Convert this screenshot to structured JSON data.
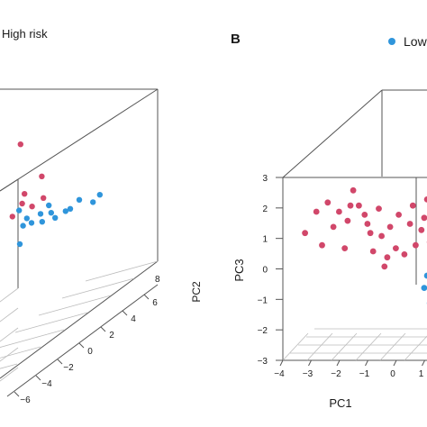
{
  "panels": [
    {
      "label": "",
      "legend": [
        "High risk"
      ],
      "axis_labels": {
        "pc2": "PC2"
      },
      "pc2_ticks": [
        "6",
        "4",
        "2",
        "0",
        "−2",
        "−4",
        "−6"
      ],
      "pc2_top_tick": "8"
    },
    {
      "label": "B",
      "legend": [
        "Low"
      ],
      "axis_labels": {
        "pc1": "PC1",
        "pc3": "PC3"
      },
      "pc3_ticks": [
        "3",
        "2",
        "1",
        "0",
        "−1",
        "−2",
        "−3"
      ],
      "pc1_ticks": [
        "−4",
        "−3",
        "−2",
        "−1",
        "0",
        "1"
      ]
    }
  ],
  "colors": {
    "high_risk": "#d1476a",
    "low_risk": "#2f95db",
    "axes": "#555555",
    "grid": "#bcbcbc"
  },
  "chart_data": [
    {
      "type": "scatter",
      "title": "",
      "axes": [
        "PC1",
        "PC2",
        "PC3"
      ],
      "ylim_pc2": [
        -6,
        8
      ],
      "series": [
        {
          "name": "High risk",
          "color": "#d1476a",
          "points": [
            [
              0.2,
              0.5,
              2.6
            ],
            [
              0.4,
              0.2,
              1.2
            ],
            [
              0.8,
              0.9,
              1.6
            ],
            [
              0.3,
              0.3,
              0.9
            ],
            [
              0.6,
              0.4,
              0.8
            ],
            [
              0.1,
              -0.2,
              0.6
            ],
            [
              0.9,
              0.7,
              1.0
            ]
          ]
        },
        {
          "name": "Low risk",
          "color": "#2f95db",
          "points": [
            [
              0.2,
              0.3,
              0.7
            ],
            [
              0.5,
              0.1,
              0.5
            ],
            [
              0.9,
              0.3,
              0.6
            ],
            [
              1.2,
              0.5,
              0.6
            ],
            [
              1.6,
              0.8,
              0.6
            ],
            [
              2.0,
              1.0,
              0.9
            ],
            [
              2.4,
              1.2,
              0.8
            ],
            [
              0.7,
              -0.1,
              0.4
            ],
            [
              1.4,
              0.2,
              0.5
            ],
            [
              1.8,
              0.6,
              0.7
            ],
            [
              0.4,
              0.0,
              0.3
            ],
            [
              1.0,
              0.1,
              0.4
            ],
            [
              0.2,
              0.4,
              -0.3
            ],
            [
              2.6,
              1.3,
              1.0
            ],
            [
              1.1,
              0.6,
              0.8
            ]
          ]
        }
      ]
    },
    {
      "type": "scatter",
      "title": "",
      "xlabel": "PC1",
      "zlabel": "PC3",
      "xlim": [
        -4,
        1
      ],
      "zlim": [
        -3,
        3
      ],
      "series": [
        {
          "name": "Low",
          "color": "#2f95db",
          "points": [
            [
              0.6,
              0,
              -0.8
            ],
            [
              0.7,
              0,
              -0.4
            ],
            [
              0.8,
              0,
              -1.3
            ]
          ]
        },
        {
          "name": "High risk",
          "color": "#d1476a",
          "points": [
            [
              -3.6,
              0,
              1.0
            ],
            [
              -3.2,
              0,
              1.7
            ],
            [
              -3.0,
              0,
              0.6
            ],
            [
              -2.8,
              0,
              2.0
            ],
            [
              -2.6,
              0,
              1.2
            ],
            [
              -2.4,
              0,
              1.7
            ],
            [
              -2.2,
              0,
              0.5
            ],
            [
              -2.1,
              0,
              1.4
            ],
            [
              -1.9,
              0,
              2.4
            ],
            [
              -1.7,
              0,
              1.9
            ],
            [
              -1.5,
              0,
              1.6
            ],
            [
              -1.3,
              0,
              1.0
            ],
            [
              -1.2,
              0,
              0.4
            ],
            [
              -1.0,
              0,
              1.8
            ],
            [
              -0.9,
              0,
              0.9
            ],
            [
              -0.7,
              0,
              0.2
            ],
            [
              -0.6,
              0,
              1.2
            ],
            [
              -0.4,
              0,
              0.5
            ],
            [
              -0.3,
              0,
              1.6
            ],
            [
              -0.1,
              0,
              0.3
            ],
            [
              0.1,
              0,
              1.3
            ],
            [
              0.3,
              0,
              0.6
            ],
            [
              0.5,
              0,
              1.1
            ],
            [
              0.6,
              0,
              1.5
            ],
            [
              0.7,
              0,
              2.1
            ],
            [
              -2.0,
              0,
              1.9
            ],
            [
              -1.4,
              0,
              1.3
            ],
            [
              -0.8,
              0,
              -0.1
            ],
            [
              0.2,
              0,
              1.9
            ],
            [
              0.8,
              0,
              0.7
            ]
          ]
        }
      ]
    }
  ]
}
